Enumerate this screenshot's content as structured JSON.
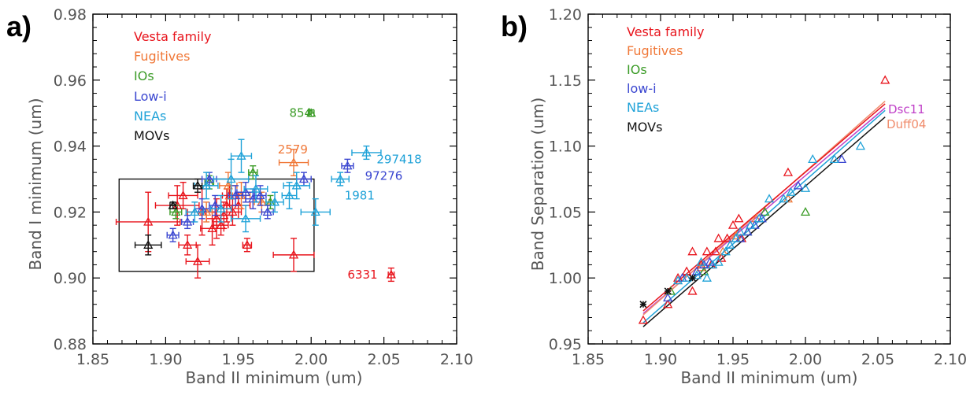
{
  "colors": {
    "Vesta family": "#e8141c",
    "Fugitives": "#f07838",
    "IOs": "#3c9c28",
    "Low-i": "#3a46d0",
    "NEAs": "#1fa2d8",
    "MOVs": "#111111",
    "Dsc11": "#c040c8",
    "Duff04": "#f08c6c"
  },
  "chart_data": [
    {
      "panel_label": "a)",
      "type": "scatter",
      "xlabel": "Band II minimum (um)",
      "ylabel": "Band I minimum (um)",
      "xlim": [
        1.85,
        2.1
      ],
      "ylim": [
        0.88,
        0.98
      ],
      "xticks": [
        "1.85",
        "1.90",
        "1.95",
        "2.00",
        "2.05",
        "2.10"
      ],
      "yticks": [
        "0.88",
        "0.90",
        "0.92",
        "0.94",
        "0.96",
        "0.98"
      ],
      "legend": [
        "Vesta family",
        "Fugitives",
        "IOs",
        "Low-i",
        "NEAs",
        "MOVs"
      ],
      "box": {
        "x": [
          1.868,
          2.002
        ],
        "y": [
          0.902,
          0.93
        ]
      },
      "annotations": [
        {
          "text": "854",
          "x": 1.985,
          "y": 0.95,
          "series": "IOs"
        },
        {
          "text": "2579",
          "x": 1.977,
          "y": 0.939,
          "series": "Fugitives"
        },
        {
          "text": "297418",
          "x": 2.045,
          "y": 0.936,
          "series": "NEAs"
        },
        {
          "text": "97276",
          "x": 2.037,
          "y": 0.931,
          "series": "Low-i"
        },
        {
          "text": "1981",
          "x": 2.023,
          "y": 0.925,
          "series": "NEAs"
        },
        {
          "text": "6331",
          "x": 2.025,
          "y": 0.901,
          "series": "Vesta family"
        }
      ],
      "series": [
        {
          "name": "Vesta family",
          "points": [
            {
              "x": 1.888,
              "y": 0.917,
              "xerr": 0.022,
              "yerr": 0.009
            },
            {
              "x": 1.908,
              "y": 0.922,
              "xerr": 0.015,
              "yerr": 0.006
            },
            {
              "x": 1.912,
              "y": 0.925,
              "xerr": 0.01,
              "yerr": 0.004
            },
            {
              "x": 1.915,
              "y": 0.91,
              "xerr": 0.006,
              "yerr": 0.003
            },
            {
              "x": 1.922,
              "y": 0.905,
              "xerr": 0.008,
              "yerr": 0.005
            },
            {
              "x": 1.925,
              "y": 0.92,
              "xerr": 0.01,
              "yerr": 0.007
            },
            {
              "x": 1.932,
              "y": 0.915,
              "xerr": 0.008,
              "yerr": 0.005
            },
            {
              "x": 1.935,
              "y": 0.918,
              "xerr": 0.007,
              "yerr": 0.006
            },
            {
              "x": 1.938,
              "y": 0.916,
              "xerr": 0.005,
              "yerr": 0.003
            },
            {
              "x": 1.94,
              "y": 0.919,
              "xerr": 0.006,
              "yerr": 0.004
            },
            {
              "x": 1.942,
              "y": 0.922,
              "xerr": 0.008,
              "yerr": 0.005
            },
            {
              "x": 1.944,
              "y": 0.925,
              "xerr": 0.005,
              "yerr": 0.003
            },
            {
              "x": 1.946,
              "y": 0.92,
              "xerr": 0.006,
              "yerr": 0.004
            },
            {
              "x": 1.95,
              "y": 0.922,
              "xerr": 0.008,
              "yerr": 0.004
            },
            {
              "x": 1.956,
              "y": 0.91,
              "xerr": 0.003,
              "yerr": 0.002
            },
            {
              "x": 1.988,
              "y": 0.907,
              "xerr": 0.014,
              "yerr": 0.005
            },
            {
              "x": 2.055,
              "y": 0.901,
              "xerr": 0.002,
              "yerr": 0.002
            }
          ]
        },
        {
          "name": "Fugitives",
          "points": [
            {
              "x": 1.928,
              "y": 0.92,
              "xerr": 0.004,
              "yerr": 0.003
            },
            {
              "x": 1.943,
              "y": 0.928,
              "xerr": 0.006,
              "yerr": 0.004
            },
            {
              "x": 1.952,
              "y": 0.925,
              "xerr": 0.006,
              "yerr": 0.004
            },
            {
              "x": 1.966,
              "y": 0.923,
              "xerr": 0.005,
              "yerr": 0.003
            },
            {
              "x": 1.988,
              "y": 0.935,
              "xerr": 0.01,
              "yerr": 0.004
            }
          ]
        },
        {
          "name": "IOs",
          "points": [
            {
              "x": 1.907,
              "y": 0.92,
              "xerr": 0.004,
              "yerr": 0.002
            },
            {
              "x": 1.93,
              "y": 0.929,
              "xerr": 0.003,
              "yerr": 0.002
            },
            {
              "x": 1.96,
              "y": 0.932,
              "xerr": 0.003,
              "yerr": 0.002
            },
            {
              "x": 1.972,
              "y": 0.923,
              "xerr": 0.003,
              "yerr": 0.002
            },
            {
              "x": 2.0,
              "y": 0.95,
              "xerr": 0.002,
              "yerr": 0.001
            }
          ]
        },
        {
          "name": "Low-i",
          "points": [
            {
              "x": 1.905,
              "y": 0.913,
              "xerr": 0.004,
              "yerr": 0.002
            },
            {
              "x": 1.915,
              "y": 0.917,
              "xerr": 0.004,
              "yerr": 0.002
            },
            {
              "x": 1.925,
              "y": 0.921,
              "xerr": 0.005,
              "yerr": 0.003
            },
            {
              "x": 1.93,
              "y": 0.93,
              "xerr": 0.005,
              "yerr": 0.002
            },
            {
              "x": 1.934,
              "y": 0.922,
              "xerr": 0.004,
              "yerr": 0.003
            },
            {
              "x": 1.948,
              "y": 0.925,
              "xerr": 0.005,
              "yerr": 0.003
            },
            {
              "x": 1.955,
              "y": 0.926,
              "xerr": 0.006,
              "yerr": 0.003
            },
            {
              "x": 1.96,
              "y": 0.924,
              "xerr": 0.005,
              "yerr": 0.003
            },
            {
              "x": 1.965,
              "y": 0.925,
              "xerr": 0.004,
              "yerr": 0.003
            },
            {
              "x": 1.97,
              "y": 0.92,
              "xerr": 0.004,
              "yerr": 0.002
            },
            {
              "x": 1.995,
              "y": 0.93,
              "xerr": 0.005,
              "yerr": 0.002
            },
            {
              "x": 2.025,
              "y": 0.934,
              "xerr": 0.004,
              "yerr": 0.002
            }
          ]
        },
        {
          "name": "NEAs",
          "points": [
            {
              "x": 1.92,
              "y": 0.92,
              "xerr": 0.006,
              "yerr": 0.003
            },
            {
              "x": 1.928,
              "y": 0.928,
              "xerr": 0.008,
              "yerr": 0.004
            },
            {
              "x": 1.938,
              "y": 0.921,
              "xerr": 0.007,
              "yerr": 0.004
            },
            {
              "x": 1.945,
              "y": 0.93,
              "xerr": 0.012,
              "yerr": 0.006
            },
            {
              "x": 1.952,
              "y": 0.937,
              "xerr": 0.007,
              "yerr": 0.005
            },
            {
              "x": 1.955,
              "y": 0.918,
              "xerr": 0.01,
              "yerr": 0.004
            },
            {
              "x": 1.962,
              "y": 0.927,
              "xerr": 0.008,
              "yerr": 0.004
            },
            {
              "x": 1.975,
              "y": 0.923,
              "xerr": 0.006,
              "yerr": 0.003
            },
            {
              "x": 1.985,
              "y": 0.925,
              "xerr": 0.005,
              "yerr": 0.004
            },
            {
              "x": 1.99,
              "y": 0.928,
              "xerr": 0.009,
              "yerr": 0.004
            },
            {
              "x": 2.003,
              "y": 0.92,
              "xerr": 0.01,
              "yerr": 0.004
            },
            {
              "x": 2.02,
              "y": 0.93,
              "xerr": 0.006,
              "yerr": 0.002
            },
            {
              "x": 2.038,
              "y": 0.938,
              "xerr": 0.01,
              "yerr": 0.002
            }
          ]
        },
        {
          "name": "MOVs",
          "points": [
            {
              "x": 1.888,
              "y": 0.91,
              "xerr": 0.009,
              "yerr": 0.003
            },
            {
              "x": 1.905,
              "y": 0.922,
              "xerr": 0.002,
              "yerr": 0.001
            },
            {
              "x": 1.922,
              "y": 0.928,
              "xerr": 0.003,
              "yerr": 0.002
            }
          ]
        }
      ]
    },
    {
      "panel_label": "b)",
      "type": "scatter",
      "xlabel": "Band II minimum (um)",
      "ylabel": "Band Separation (um)",
      "xlim": [
        1.85,
        2.1
      ],
      "ylim": [
        0.95,
        1.2
      ],
      "xticks": [
        "1.85",
        "1.90",
        "1.95",
        "2.00",
        "2.05",
        "2.10"
      ],
      "yticks": [
        "0.95",
        "1.00",
        "1.05",
        "1.10",
        "1.15",
        "1.20"
      ],
      "legend": [
        "Vesta family",
        "Fugitives",
        "IOs",
        "low-i",
        "NEAs",
        "MOVs"
      ],
      "series": [
        {
          "name": "Vesta family",
          "points": [
            [
              1.888,
              0.968
            ],
            [
              1.905,
              0.98
            ],
            [
              1.912,
              1.0
            ],
            [
              1.918,
              1.005
            ],
            [
              1.922,
              0.99
            ],
            [
              1.922,
              1.02
            ],
            [
              1.928,
              1.01
            ],
            [
              1.932,
              1.02
            ],
            [
              1.935,
              1.01
            ],
            [
              1.938,
              1.02
            ],
            [
              1.94,
              1.03
            ],
            [
              1.942,
              1.015
            ],
            [
              1.946,
              1.03
            ],
            [
              1.95,
              1.04
            ],
            [
              1.954,
              1.045
            ],
            [
              1.956,
              1.03
            ],
            [
              1.988,
              1.08
            ],
            [
              2.055,
              1.15
            ]
          ]
        },
        {
          "name": "Fugitives",
          "points": [
            [
              1.928,
              1.008
            ],
            [
              1.943,
              1.02
            ],
            [
              1.952,
              1.032
            ],
            [
              1.966,
              1.045
            ],
            [
              1.988,
              1.06
            ]
          ]
        },
        {
          "name": "IOs",
          "points": [
            [
              1.907,
              0.99
            ],
            [
              1.93,
              1.005
            ],
            [
              1.96,
              1.035
            ],
            [
              1.972,
              1.05
            ],
            [
              2.0,
              1.05
            ]
          ]
        },
        {
          "name": "low-i",
          "points": [
            [
              1.905,
              0.985
            ],
            [
              1.915,
              1.0
            ],
            [
              1.925,
              1.005
            ],
            [
              1.93,
              1.01
            ],
            [
              1.934,
              1.012
            ],
            [
              1.948,
              1.025
            ],
            [
              1.955,
              1.03
            ],
            [
              1.96,
              1.035
            ],
            [
              1.965,
              1.04
            ],
            [
              1.97,
              1.045
            ],
            [
              1.995,
              1.07
            ],
            [
              2.025,
              1.09
            ]
          ]
        },
        {
          "name": "NEAs",
          "points": [
            [
              1.912,
              0.998
            ],
            [
              1.918,
              1.0
            ],
            [
              1.925,
              1.002
            ],
            [
              1.928,
              1.012
            ],
            [
              1.932,
              1.0
            ],
            [
              1.936,
              1.01
            ],
            [
              1.94,
              1.012
            ],
            [
              1.945,
              1.02
            ],
            [
              1.948,
              1.025
            ],
            [
              1.952,
              1.03
            ],
            [
              1.955,
              1.035
            ],
            [
              1.962,
              1.04
            ],
            [
              1.968,
              1.045
            ],
            [
              1.975,
              1.06
            ],
            [
              1.985,
              1.06
            ],
            [
              1.99,
              1.065
            ],
            [
              2.0,
              1.068
            ],
            [
              2.005,
              1.09
            ],
            [
              2.02,
              1.09
            ],
            [
              2.038,
              1.1
            ]
          ]
        },
        {
          "name": "MOVs",
          "points": [
            [
              1.888,
              0.98
            ],
            [
              1.905,
              0.99
            ],
            [
              1.922,
              1.0
            ]
          ]
        }
      ],
      "fit_lines": [
        {
          "name": "Dsc11",
          "x": [
            1.888,
            2.055
          ],
          "y": [
            0.973,
            1.129
          ]
        },
        {
          "name": "Duff04",
          "x": [
            1.888,
            2.055
          ],
          "y": [
            0.972,
            1.134
          ]
        },
        {
          "name": "Vesta family",
          "x": [
            1.888,
            2.055
          ],
          "y": [
            0.975,
            1.132
          ]
        },
        {
          "name": "NEAs",
          "x": [
            1.888,
            2.055
          ],
          "y": [
            0.966,
            1.127
          ]
        },
        {
          "name": "MOVs",
          "x": [
            1.888,
            2.055
          ],
          "y": [
            0.963,
            1.122
          ]
        }
      ],
      "line_labels": [
        "Dsc11",
        "Duff04"
      ]
    }
  ]
}
